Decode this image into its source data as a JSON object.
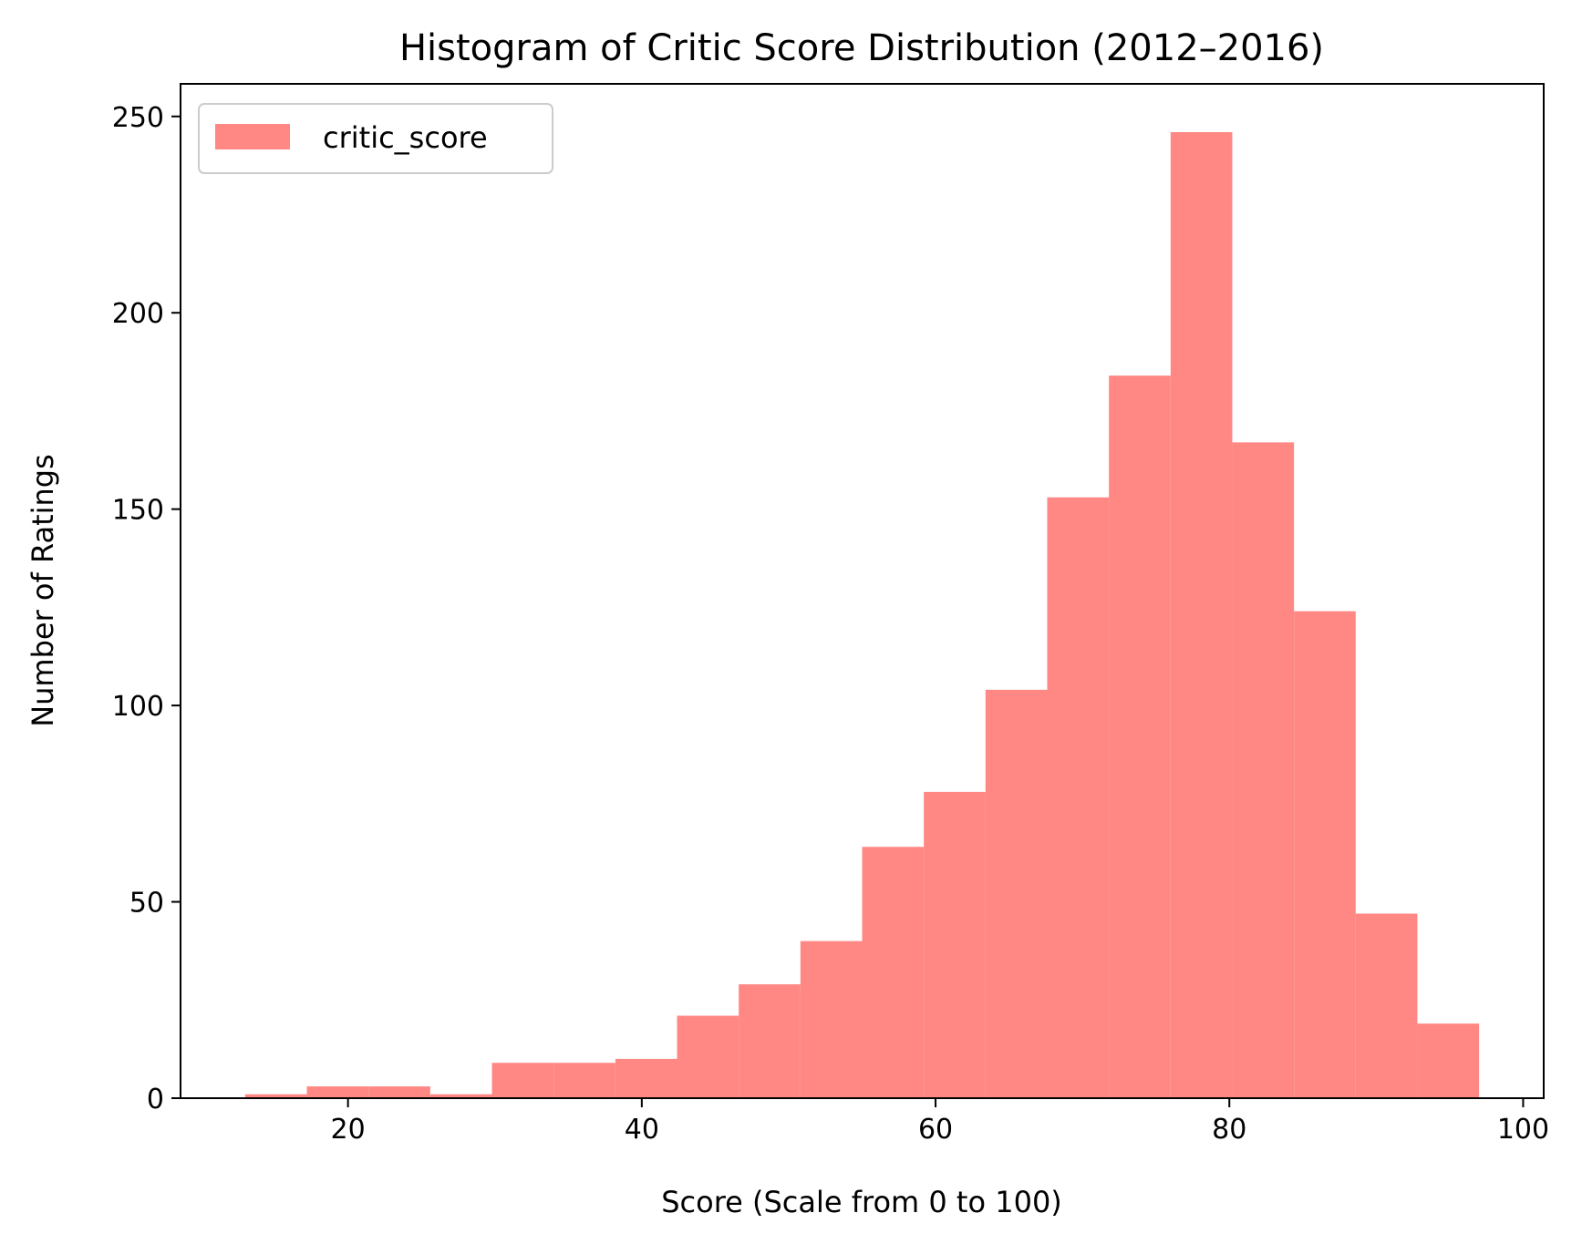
{
  "chart_data": {
    "type": "bar",
    "title": "Histogram of Critic Score Distribution (2012–2016)",
    "xlabel": "Score (Scale from 0 to 100)",
    "ylabel": "Number of Ratings",
    "xlim": [
      8.6,
      101.4
    ],
    "ylim": [
      0,
      258.3
    ],
    "xticks": [
      20,
      40,
      60,
      80,
      100
    ],
    "yticks": [
      0,
      50,
      100,
      150,
      200,
      250
    ],
    "bin_edges": [
      13,
      17.2,
      21.4,
      25.6,
      29.8,
      34,
      38.2,
      42.4,
      46.6,
      50.8,
      55,
      59.2,
      63.4,
      67.6,
      71.8,
      76,
      80.2,
      84.4,
      88.6,
      92.8,
      97
    ],
    "series": [
      {
        "name": "critic_score",
        "color": "#ff8884",
        "values": [
          1,
          3,
          3,
          1,
          9,
          9,
          10,
          21,
          29,
          40,
          64,
          78,
          104,
          153,
          184,
          246,
          167,
          124,
          47,
          19
        ]
      }
    ],
    "grid": false,
    "legend_position": "top-left"
  }
}
